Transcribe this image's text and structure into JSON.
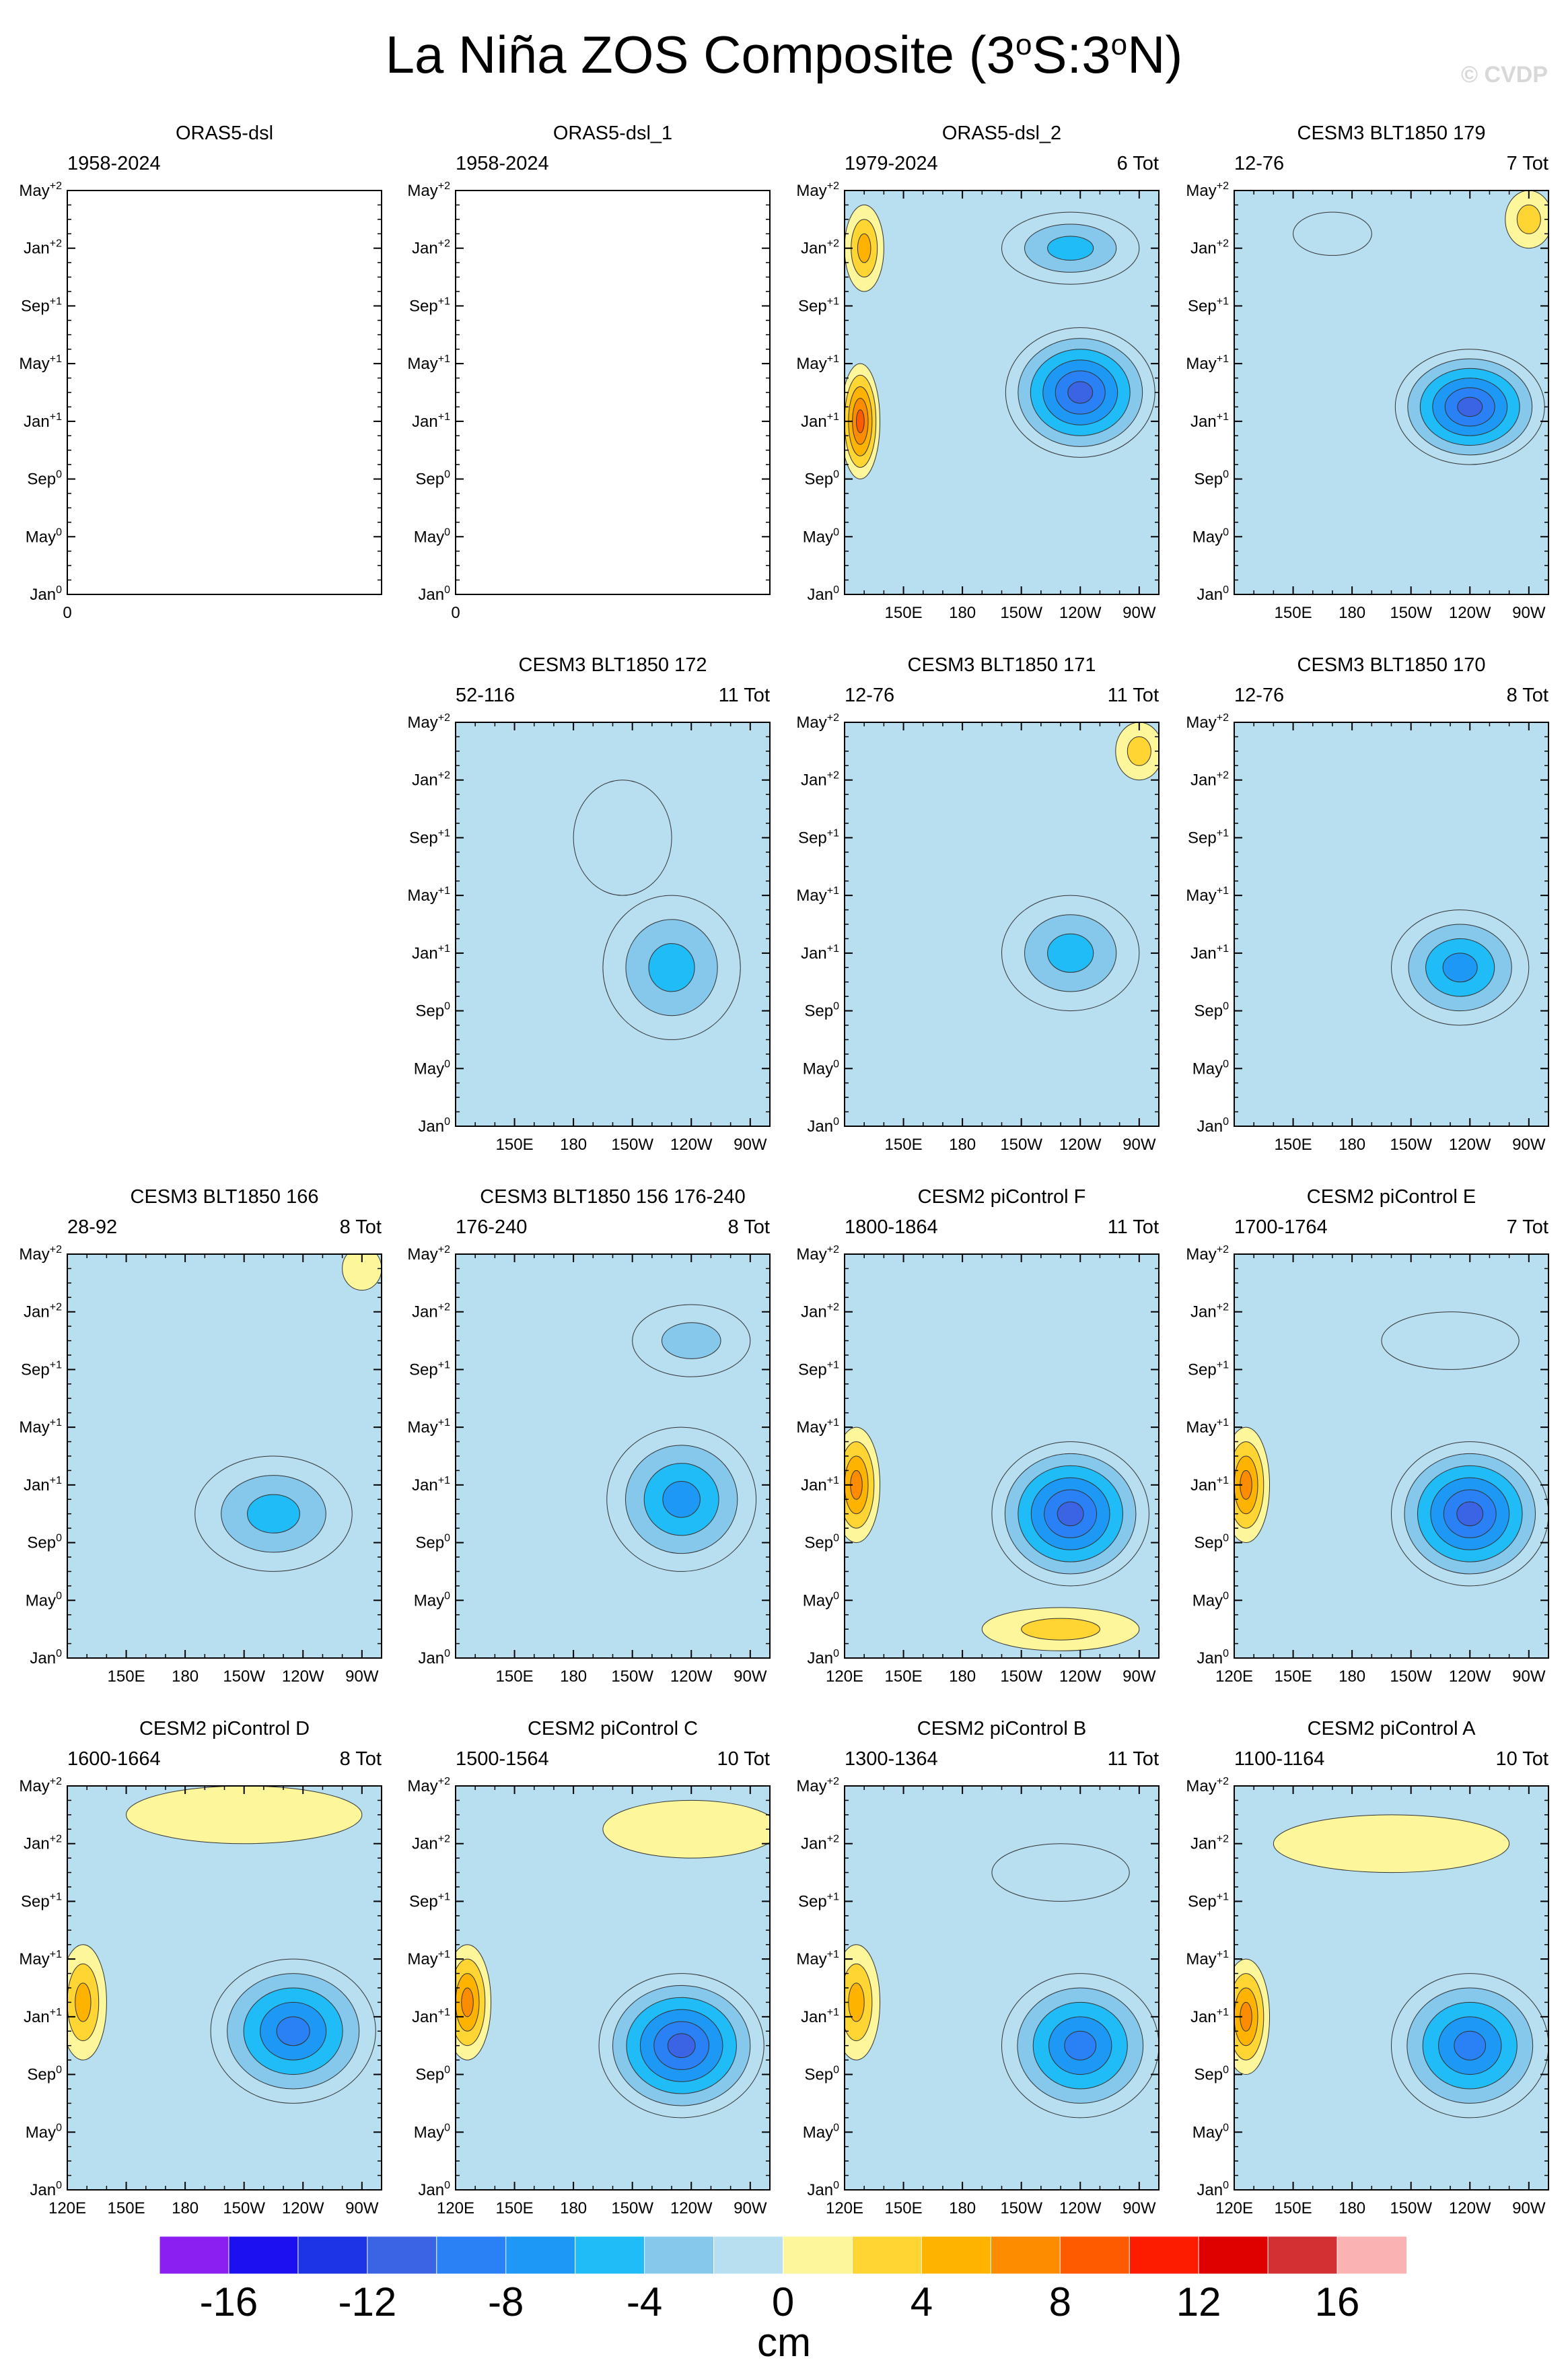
{
  "figure": {
    "title_main": "La Niña ZOS Composite (3",
    "title_sup1": "o",
    "title_mid": "S:3",
    "title_sup2": "o",
    "title_end": "N)",
    "watermark": "© CVDP"
  },
  "chart_data": {
    "type": "heatmap",
    "description_axes": "x = longitude (120E to 80W), y = month of ENSO event (Jan0 to May+2)",
    "x_ticks": [
      "120E",
      "150E",
      "180",
      "150W",
      "120W",
      "90W"
    ],
    "x_tick_values": [
      120,
      150,
      180,
      210,
      240,
      270
    ],
    "xlim": [
      120,
      280
    ],
    "y_ticks": [
      {
        "base": "Jan",
        "sup": "0"
      },
      {
        "base": "May",
        "sup": "0"
      },
      {
        "base": "Sep",
        "sup": "0"
      },
      {
        "base": "Jan",
        "sup": "+1"
      },
      {
        "base": "May",
        "sup": "+1"
      },
      {
        "base": "Sep",
        "sup": "+1"
      },
      {
        "base": "Jan",
        "sup": "+2"
      },
      {
        "base": "May",
        "sup": "+2"
      }
    ],
    "ylim": [
      0,
      28
    ],
    "colorbar": {
      "levels": [
        -18,
        -16,
        -14,
        -12,
        -10,
        -8,
        -6,
        -4,
        -2,
        0,
        2,
        4,
        6,
        8,
        10,
        12,
        14,
        16,
        18
      ],
      "colors": [
        "#8b1ff2",
        "#1d10f0",
        "#1c34e6",
        "#3a64e4",
        "#2a80f5",
        "#1e98f5",
        "#1fbcf7",
        "#86c8ec",
        "#b7dff0",
        "#fdf69a",
        "#fed533",
        "#feb300",
        "#fe8c00",
        "#fe5a00",
        "#fe1c00",
        "#df0000",
        "#d33033",
        "#fbb2b2"
      ],
      "labels": [
        "-16",
        "-12",
        "-8",
        "-4",
        "0",
        "4",
        "8",
        "12",
        "16"
      ],
      "label_values": [
        -16,
        -12,
        -8,
        -4,
        0,
        4,
        8,
        12,
        16
      ],
      "units": "cm"
    },
    "panels": [
      {
        "title": "ORAS5-dsl",
        "years": "1958-2024",
        "count": "",
        "empty": true,
        "xlabels": [
          "0"
        ],
        "centers": []
      },
      {
        "title": "ORAS5-dsl_1",
        "years": "1958-2024",
        "count": "",
        "empty": true,
        "xlabels": [
          "0"
        ],
        "centers": []
      },
      {
        "title": "ORAS5-dsl_2",
        "years": "1979-2024",
        "count": "6 Tot",
        "empty": false,
        "xlabels": [
          "",
          "150E",
          "180",
          "150W",
          "120W",
          "90W"
        ],
        "centers": [
          {
            "lon": 240,
            "t": 14,
            "value": -12,
            "rx": 38,
            "ry": 4.5
          },
          {
            "lon": 235,
            "t": 24,
            "value": -6,
            "rx": 35,
            "ry": 2.5
          },
          {
            "lon": 128,
            "t": 12,
            "value": 10,
            "rx": 10,
            "ry": 4
          },
          {
            "lon": 130,
            "t": 24,
            "value": 7,
            "rx": 10,
            "ry": 3
          }
        ]
      },
      {
        "title": "CESM3 BLT1850 179",
        "years": "12-76",
        "count": "7 Tot",
        "empty": false,
        "xlabels": [
          "",
          "150E",
          "180",
          "150W",
          "120W",
          "90W"
        ],
        "centers": [
          {
            "lon": 240,
            "t": 13,
            "value": -12,
            "rx": 38,
            "ry": 4
          },
          {
            "lon": 270,
            "t": 26,
            "value": 5,
            "rx": 12,
            "ry": 2
          },
          {
            "lon": 170,
            "t": 25,
            "value": -2,
            "rx": 20,
            "ry": 1.5
          }
        ]
      },
      {
        "title": "CESM3 BLT1850 172",
        "years": "52-116",
        "count": "11 Tot",
        "empty": false,
        "xlabels": [
          "",
          "150E",
          "180",
          "150W",
          "120W",
          "90W"
        ],
        "centers": [
          {
            "lon": 230,
            "t": 11,
            "value": -6,
            "rx": 35,
            "ry": 5
          },
          {
            "lon": 205,
            "t": 20,
            "value": -3,
            "rx": 25,
            "ry": 4
          }
        ]
      },
      {
        "title": "CESM3 BLT1850 171",
        "years": "12-76",
        "count": "11 Tot",
        "empty": false,
        "xlabels": [
          "",
          "150E",
          "180",
          "150W",
          "120W",
          "90W"
        ],
        "centers": [
          {
            "lon": 235,
            "t": 12,
            "value": -7,
            "rx": 35,
            "ry": 4
          },
          {
            "lon": 270,
            "t": 26,
            "value": 4,
            "rx": 12,
            "ry": 2
          }
        ]
      },
      {
        "title": "CESM3 BLT1850 170",
        "years": "12-76",
        "count": "8 Tot",
        "empty": false,
        "xlabels": [
          "",
          "150E",
          "180",
          "150W",
          "120W",
          "90W"
        ],
        "centers": [
          {
            "lon": 235,
            "t": 11,
            "value": -8,
            "rx": 35,
            "ry": 4
          }
        ]
      },
      {
        "title": "CESM3 BLT1850 166",
        "years": "28-92",
        "count": "8 Tot",
        "empty": false,
        "xlabels": [
          "",
          "150E",
          "180",
          "150W",
          "120W",
          "90W"
        ],
        "centers": [
          {
            "lon": 225,
            "t": 10,
            "value": -7,
            "rx": 40,
            "ry": 4
          },
          {
            "lon": 270,
            "t": 27,
            "value": 3,
            "rx": 10,
            "ry": 1.5
          }
        ]
      },
      {
        "title": "CESM3 BLT1850 156 176-240",
        "years": "176-240",
        "count": "8 Tot",
        "empty": false,
        "xlabels": [
          "",
          "150E",
          "180",
          "150W",
          "120W",
          "90W"
        ],
        "centers": [
          {
            "lon": 235,
            "t": 11,
            "value": -8,
            "rx": 38,
            "ry": 5
          },
          {
            "lon": 240,
            "t": 22,
            "value": -4,
            "rx": 30,
            "ry": 2.5
          }
        ]
      },
      {
        "title": "CESM2 piControl F",
        "years": "1800-1864",
        "count": "11 Tot",
        "empty": false,
        "xlabels": [
          "120E",
          "150E",
          "180",
          "150W",
          "120W",
          "90W"
        ],
        "centers": [
          {
            "lon": 235,
            "t": 10,
            "value": -12,
            "rx": 40,
            "ry": 5
          },
          {
            "lon": 126,
            "t": 12,
            "value": 8,
            "rx": 12,
            "ry": 4
          },
          {
            "lon": 230,
            "t": 2,
            "value": 4,
            "rx": 40,
            "ry": 1.5
          }
        ]
      },
      {
        "title": "CESM2 piControl E",
        "years": "1700-1764",
        "count": "7 Tot",
        "empty": false,
        "xlabels": [
          "120E",
          "150E",
          "180",
          "150W",
          "120W",
          "90W"
        ],
        "centers": [
          {
            "lon": 240,
            "t": 10,
            "value": -12,
            "rx": 40,
            "ry": 5
          },
          {
            "lon": 126,
            "t": 12,
            "value": 8,
            "rx": 12,
            "ry": 4
          },
          {
            "lon": 230,
            "t": 22,
            "value": -3,
            "rx": 35,
            "ry": 2
          }
        ]
      },
      {
        "title": "CESM2 piControl D",
        "years": "1600-1664",
        "count": "8 Tot",
        "empty": false,
        "xlabels": [
          "120E",
          "150E",
          "180",
          "150W",
          "120W",
          "90W"
        ],
        "centers": [
          {
            "lon": 235,
            "t": 11,
            "value": -10,
            "rx": 42,
            "ry": 5
          },
          {
            "lon": 128,
            "t": 13,
            "value": 7,
            "rx": 12,
            "ry": 4
          },
          {
            "lon": 210,
            "t": 26,
            "value": 2,
            "rx": 60,
            "ry": 2
          }
        ]
      },
      {
        "title": "CESM2 piControl C",
        "years": "1500-1564",
        "count": "10 Tot",
        "empty": false,
        "xlabels": [
          "120E",
          "150E",
          "180",
          "150W",
          "120W",
          "90W"
        ],
        "centers": [
          {
            "lon": 235,
            "t": 10,
            "value": -12,
            "rx": 42,
            "ry": 5
          },
          {
            "lon": 126,
            "t": 13,
            "value": 8,
            "rx": 12,
            "ry": 4
          },
          {
            "lon": 240,
            "t": 25,
            "value": 3,
            "rx": 45,
            "ry": 2
          }
        ]
      },
      {
        "title": "CESM2 piControl B",
        "years": "1300-1364",
        "count": "11 Tot",
        "empty": false,
        "xlabels": [
          "120E",
          "150E",
          "180",
          "150W",
          "120W",
          "90W"
        ],
        "centers": [
          {
            "lon": 240,
            "t": 10,
            "value": -10,
            "rx": 40,
            "ry": 5
          },
          {
            "lon": 126,
            "t": 13,
            "value": 7,
            "rx": 12,
            "ry": 4
          },
          {
            "lon": 230,
            "t": 22,
            "value": -2,
            "rx": 35,
            "ry": 2
          }
        ]
      },
      {
        "title": "CESM2 piControl A",
        "years": "1100-1164",
        "count": "10 Tot",
        "empty": false,
        "xlabels": [
          "120E",
          "150E",
          "180",
          "150W",
          "120W",
          "90W"
        ],
        "centers": [
          {
            "lon": 240,
            "t": 10,
            "value": -11,
            "rx": 40,
            "ry": 5
          },
          {
            "lon": 126,
            "t": 12,
            "value": 8,
            "rx": 12,
            "ry": 4
          },
          {
            "lon": 200,
            "t": 24,
            "value": 2,
            "rx": 60,
            "ry": 2
          }
        ]
      }
    ]
  }
}
